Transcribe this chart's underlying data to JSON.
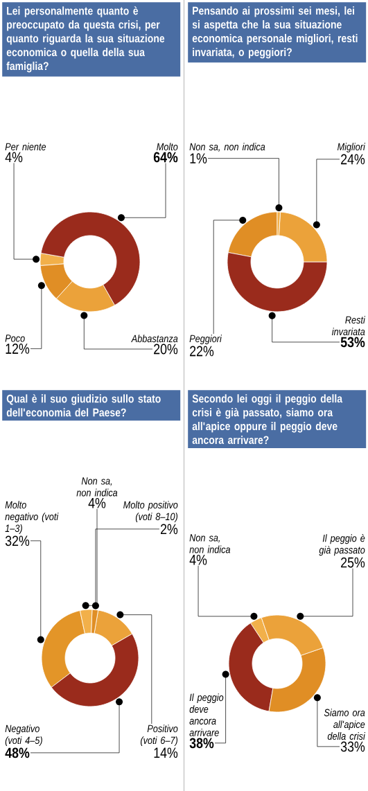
{
  "chart_data": [
    {
      "type": "donut",
      "title": "Lei personalmente quanto è preoccupato da questa crisi, per quanto riguarda la sua situazione economica o quella della sua famiglia?",
      "categories": [
        "Molto",
        "Abbastanza",
        "Poco",
        "Per niente"
      ],
      "values": [
        64,
        20,
        12,
        4
      ],
      "value_labels": [
        "64%",
        "20%",
        "12%",
        "4%"
      ],
      "colors": [
        "#9a2b1c",
        "#eba23a",
        "#e08e25",
        "#f2b04a"
      ]
    },
    {
      "type": "donut",
      "title": "Pensando ai prossimi sei mesi, lei si aspetta che la sua situazione economica personale migliori, resti invariata, o peggiori?",
      "categories": [
        "Non sa, non indica",
        "Migliori",
        "Resti invariata",
        "Peggiori"
      ],
      "values": [
        1,
        24,
        53,
        22
      ],
      "value_labels": [
        "1%",
        "24%",
        "53%",
        "22%"
      ],
      "colors": [
        "#f2b04a",
        "#eba23a",
        "#9a2b1c",
        "#e08e25"
      ]
    },
    {
      "type": "donut",
      "title": "Qual è il suo giudizio sullo stato dell'economia del Paese?",
      "categories": [
        "Non sa, non indica",
        "Molto positivo (voti 8–10)",
        "Positivo (voti 6–7)",
        "Negativo (voti 4–5)",
        "Molto negativo (voti 1–3)"
      ],
      "values": [
        4,
        2,
        14,
        48,
        32
      ],
      "value_labels": [
        "4%",
        "2%",
        "14%",
        "48%",
        "32%"
      ],
      "colors": [
        "#f2b04a",
        "#e08e25",
        "#eba23a",
        "#9a2b1c",
        "#e39528"
      ]
    },
    {
      "type": "donut",
      "title": "Secondo lei oggi il peggio della crisi è già passato, siamo ora all'apice oppure il peggio deve ancora arrivare?",
      "categories": [
        "Il peggio è già passato",
        "Siamo ora all'apice della crisi",
        "Il peggio deve ancora arrivare",
        "Non sa, non indica"
      ],
      "values": [
        25,
        33,
        38,
        4
      ],
      "value_labels": [
        "25%",
        "33%",
        "38%",
        "4%"
      ],
      "colors": [
        "#eba23a",
        "#e08e25",
        "#9a2b1c",
        "#f2b04a"
      ]
    }
  ]
}
